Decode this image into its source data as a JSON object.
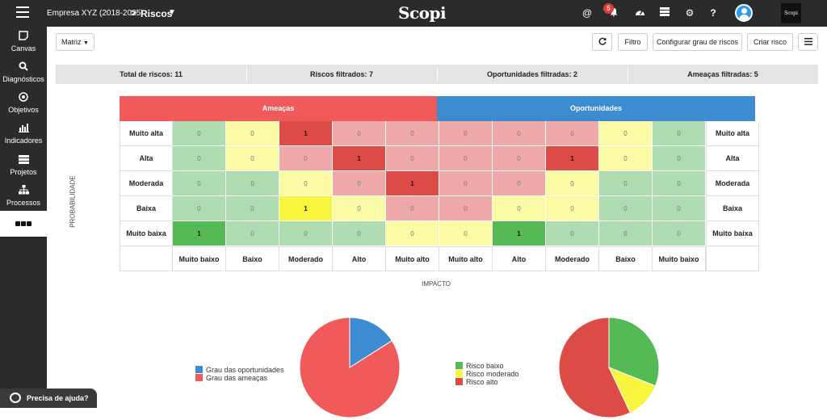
{
  "header": {
    "company": "Empresa XYZ (2018-2025)",
    "separator": ">",
    "page": "Riscos",
    "logo": "Scopi",
    "notifications_count": "5",
    "brand_badge": "Scopi"
  },
  "sidebar": {
    "items": [
      {
        "label": "Canvas",
        "icon": "canvas-icon"
      },
      {
        "label": "Diagnósticos",
        "icon": "search-icon"
      },
      {
        "label": "Objetivos",
        "icon": "target-icon"
      },
      {
        "label": "Indicadores",
        "icon": "bar-chart-icon"
      },
      {
        "label": "Projetos",
        "icon": "list-icon"
      },
      {
        "label": "Processos",
        "icon": "sitemap-icon"
      }
    ]
  },
  "toolbar": {
    "view_select": "Matriz",
    "filter": "Filtro",
    "configure": "Configurar grau de riscos",
    "create": "Criar risco"
  },
  "stats": [
    "Total de riscos: 11",
    "Riscos filtrados: 7",
    "Oportunidades filtradas: 2",
    "Ameaças filtradas: 5"
  ],
  "matrix": {
    "threats_title": "Ameaças",
    "opportunities_title": "Oportunidades",
    "threat_color": "#f05a5a",
    "opportunity_color": "#3d8bd1",
    "rows": [
      "Muito alta",
      "Alta",
      "Moderada",
      "Baixa",
      "Muito baixa"
    ],
    "columns": [
      "Muito baixo",
      "Baixo",
      "Moderado",
      "Alto",
      "Muito alto",
      "Muito alto",
      "Alto",
      "Moderado",
      "Baixo",
      "Muito baixo"
    ],
    "values": [
      [
        0,
        0,
        1,
        0,
        0,
        0,
        0,
        0,
        0,
        0
      ],
      [
        0,
        0,
        0,
        1,
        0,
        0,
        0,
        1,
        0,
        0
      ],
      [
        0,
        0,
        0,
        0,
        1,
        0,
        0,
        0,
        0,
        0
      ],
      [
        0,
        0,
        1,
        0,
        0,
        0,
        0,
        0,
        0,
        0
      ],
      [
        1,
        0,
        0,
        0,
        0,
        0,
        1,
        0,
        0,
        0
      ]
    ],
    "colors": [
      [
        "#aedbaf",
        "#fbfba6",
        "#dd4b47",
        "#eea8a8",
        "#eea8a8",
        "#eea8a8",
        "#eea8a8",
        "#eea8a8",
        "#fbfba6",
        "#aedbaf"
      ],
      [
        "#aedbaf",
        "#fbfba6",
        "#eea8a8",
        "#dd4b47",
        "#eea8a8",
        "#eea8a8",
        "#eea8a8",
        "#dd4b47",
        "#fbfba6",
        "#aedbaf"
      ],
      [
        "#aedbaf",
        "#aedbaf",
        "#fbfba6",
        "#eea8a8",
        "#dd4b47",
        "#eea8a8",
        "#eea8a8",
        "#fbfba6",
        "#aedbaf",
        "#aedbaf"
      ],
      [
        "#aedbaf",
        "#aedbaf",
        "#f7f53e",
        "#fbfba6",
        "#eea8a8",
        "#eea8a8",
        "#fbfba6",
        "#fbfba6",
        "#aedbaf",
        "#aedbaf"
      ],
      [
        "#55b955",
        "#aedbaf",
        "#aedbaf",
        "#aedbaf",
        "#fbfba6",
        "#fbfba6",
        "#55b955",
        "#aedbaf",
        "#aedbaf",
        "#aedbaf"
      ]
    ],
    "y_axis": "PROBABILIDADE",
    "x_axis": "IMPACTO"
  },
  "chart_data": [
    {
      "type": "pie",
      "categories": [
        "Grau das oportunidades",
        "Grau das ameaças"
      ],
      "values": [
        16,
        84
      ],
      "colors": [
        "#3d8bd1",
        "#f05a5a"
      ]
    },
    {
      "type": "pie",
      "categories": [
        "Risco baixo",
        "Risco moderado",
        "Risco alto"
      ],
      "values": [
        31,
        12,
        57
      ],
      "colors": [
        "#55b955",
        "#f7f53e",
        "#dd4b47"
      ]
    }
  ],
  "help": {
    "label": "Precisa de ajuda?"
  }
}
